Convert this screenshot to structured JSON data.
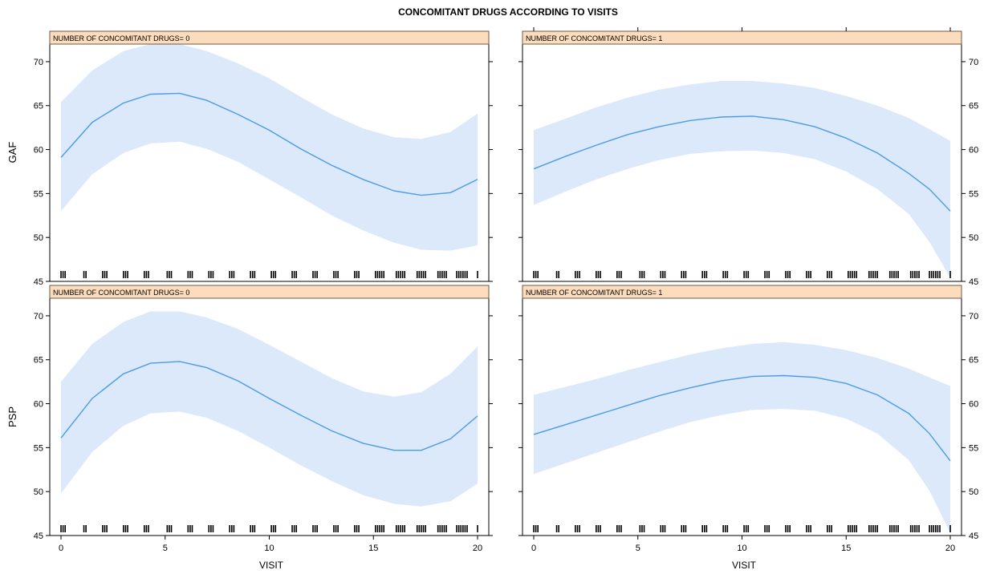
{
  "chart_data": {
    "title": "CONCOMITANT DRUGS ACCORDING TO VISITS",
    "type": "line",
    "xlabel": "VISIT",
    "x_ticks": [
      0,
      5,
      10,
      15,
      20
    ],
    "xlim": [
      0,
      20
    ],
    "ylim": [
      45,
      72
    ],
    "y_ticks": [
      45,
      50,
      55,
      60,
      65,
      70
    ],
    "colors": {
      "line": "#4d9be6",
      "band": "#dbe9fb",
      "strip": "#fbdcbd",
      "strip_border": "#6e5a45"
    },
    "panels": [
      {
        "row": "GAF",
        "strip": "NUMBER OF CONCOMITANT DRUGS= 0",
        "x": [
          0,
          1.5,
          3,
          4.3,
          5.7,
          7,
          8.5,
          10,
          11.5,
          13,
          14.5,
          16,
          17.3,
          18.7,
          20
        ],
        "fit": [
          59.1,
          63.1,
          65.3,
          66.3,
          66.4,
          65.6,
          64.0,
          62.2,
          60.1,
          58.2,
          56.6,
          55.3,
          54.8,
          55.1,
          56.6
        ],
        "upper": [
          65.4,
          69.0,
          71.2,
          72.0,
          72.0,
          71.2,
          69.8,
          68.1,
          66.0,
          64.0,
          62.4,
          61.4,
          61.2,
          62.0,
          64.1
        ],
        "lower": [
          53.0,
          57.2,
          59.6,
          60.7,
          60.9,
          60.1,
          58.6,
          56.6,
          54.6,
          52.5,
          50.8,
          49.4,
          48.6,
          48.5,
          49.1
        ]
      },
      {
        "row": "GAF",
        "strip": "NUMBER OF CONCOMITANT DRUGS= 1",
        "x": [
          0,
          1.5,
          3,
          4.5,
          6,
          7.5,
          9,
          10.5,
          12,
          13.5,
          15,
          16.5,
          18,
          19,
          20
        ],
        "fit": [
          57.8,
          59.2,
          60.5,
          61.7,
          62.6,
          63.3,
          63.7,
          63.8,
          63.4,
          62.6,
          61.3,
          59.6,
          57.3,
          55.5,
          53.0
        ],
        "upper": [
          62.2,
          63.5,
          64.8,
          65.9,
          66.8,
          67.4,
          67.8,
          67.8,
          67.5,
          67.0,
          66.1,
          65.0,
          63.6,
          62.3,
          61.0
        ],
        "lower": [
          53.7,
          55.2,
          56.6,
          57.8,
          58.8,
          59.5,
          59.8,
          59.9,
          59.6,
          58.9,
          57.5,
          55.5,
          52.7,
          49.5,
          45.4
        ]
      },
      {
        "row": "PSP",
        "strip": "NUMBER OF CONCOMITANT DRUGS= 0",
        "x": [
          0,
          1.5,
          3,
          4.3,
          5.7,
          7,
          8.5,
          10,
          11.5,
          13,
          14.5,
          16,
          17.3,
          18.7,
          20
        ],
        "fit": [
          56.1,
          60.6,
          63.4,
          64.6,
          64.8,
          64.1,
          62.6,
          60.6,
          58.7,
          56.9,
          55.5,
          54.7,
          54.7,
          56.0,
          58.6
        ],
        "upper": [
          62.5,
          66.8,
          69.3,
          70.5,
          70.5,
          69.8,
          68.5,
          66.7,
          64.8,
          62.9,
          61.4,
          60.8,
          61.3,
          63.4,
          66.5
        ],
        "lower": [
          49.8,
          54.5,
          57.5,
          58.9,
          59.1,
          58.4,
          56.9,
          55.0,
          53.0,
          51.2,
          49.6,
          48.6,
          48.3,
          48.9,
          50.9
        ]
      },
      {
        "row": "PSP",
        "strip": "NUMBER OF CONCOMITANT DRUGS= 1",
        "x": [
          0,
          1.5,
          3,
          4.5,
          6,
          7.5,
          9,
          10.5,
          12,
          13.5,
          15,
          16.5,
          18,
          19,
          20
        ],
        "fit": [
          56.5,
          57.6,
          58.7,
          59.8,
          60.9,
          61.8,
          62.6,
          63.1,
          63.2,
          63.0,
          62.3,
          61.0,
          58.9,
          56.6,
          53.5
        ],
        "upper": [
          61.0,
          61.9,
          62.8,
          63.8,
          64.7,
          65.6,
          66.3,
          66.8,
          67.0,
          66.7,
          66.1,
          65.2,
          64.0,
          63.0,
          62.0
        ],
        "lower": [
          52.0,
          53.2,
          54.4,
          55.6,
          56.8,
          57.9,
          58.7,
          59.3,
          59.4,
          59.2,
          58.3,
          56.6,
          53.6,
          50.1,
          45.3
        ]
      }
    ]
  }
}
